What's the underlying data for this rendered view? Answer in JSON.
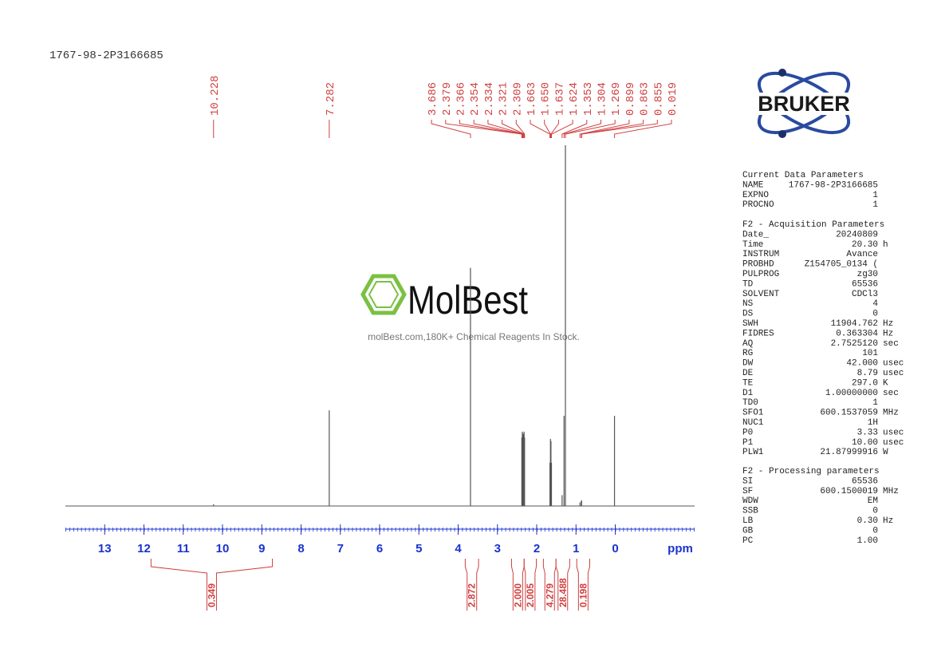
{
  "sample_id": "1767-98-2P3166685",
  "logo": {
    "text": "BRUKER"
  },
  "watermark": {
    "brand": "MolBest",
    "tagline": "molBest.com,180K+ Chemical Reagents In Stock."
  },
  "chart_data": {
    "type": "nmr",
    "x": [
      10.228,
      7.282,
      3.686,
      2.379,
      2.366,
      2.354,
      2.334,
      2.321,
      2.309,
      1.663,
      1.65,
      1.637,
      1.624,
      1.353,
      1.304,
      1.269,
      0.899,
      0.863,
      0.855,
      0.019
    ],
    "x_labels": [
      "10.228",
      "7.282",
      "3.686",
      "2.379",
      "2.366",
      "2.354",
      "2.334",
      "2.321",
      "2.309",
      "1.663",
      "1.650",
      "1.637",
      "1.624",
      "1.353",
      "1.304",
      "1.269",
      "0.899",
      "0.863",
      "0.855",
      "0.019"
    ],
    "values": [
      0.5,
      26.5,
      66,
      19,
      20.6,
      20,
      20,
      20.6,
      19,
      12,
      18.6,
      18,
      12,
      3,
      25,
      100,
      1,
      1.5,
      1.5,
      25
    ],
    "color": "#555555",
    "label_color": "#d04040",
    "axis_color": "#1a33cc",
    "xlim": [
      14,
      -2
    ],
    "xticks": [
      13,
      12,
      11,
      10,
      9,
      8,
      7,
      6,
      5,
      4,
      3,
      2,
      1,
      0
    ],
    "xlabel": "ppm",
    "ylim": [
      0,
      100
    ],
    "integrals": {
      "ranges": [
        [
          11.82,
          8.73
        ],
        [
          3.82,
          3.48
        ],
        [
          2.64,
          2.32
        ],
        [
          2.32,
          2.01
        ],
        [
          1.83,
          1.51
        ],
        [
          1.51,
          1.16
        ],
        [
          0.98,
          0.65
        ]
      ],
      "values": [
        0.349,
        2.872,
        2,
        2.005,
        4.279,
        28.488,
        0.198
      ],
      "value_labels": [
        "0.349",
        "2.872",
        "2.000",
        "2.005",
        "4.279",
        "28.488",
        "0.198"
      ]
    }
  },
  "parameters": {
    "sections": [
      {
        "title": "Current Data Parameters",
        "rows": [
          [
            "NAME",
            "1767-98-2P3166685"
          ],
          [
            "EXPNO",
            "1"
          ],
          [
            "PROCNO",
            "1"
          ]
        ]
      },
      {
        "title": "F2 - Acquisition Parameters",
        "rows": [
          [
            "Date_",
            "20240809"
          ],
          [
            "Time",
            "20.30",
            "h"
          ],
          [
            "INSTRUM",
            "Avance"
          ],
          [
            "PROBHD",
            "Z154705_0134 ("
          ],
          [
            "PULPROG",
            "zg30"
          ],
          [
            "TD",
            "65536"
          ],
          [
            "SOLVENT",
            "CDCl3"
          ],
          [
            "NS",
            "4"
          ],
          [
            "DS",
            "0"
          ],
          [
            "SWH",
            "11904.762",
            "Hz"
          ],
          [
            "FIDRES",
            "0.363304",
            "Hz"
          ],
          [
            "AQ",
            "2.7525120",
            "sec"
          ],
          [
            "RG",
            "101"
          ],
          [
            "DW",
            "42.000",
            "usec"
          ],
          [
            "DE",
            "8.79",
            "usec"
          ],
          [
            "TE",
            "297.0",
            "K"
          ],
          [
            "D1",
            "1.00000000",
            "sec"
          ],
          [
            "TD0",
            "1"
          ],
          [
            "SFO1",
            "600.1537059",
            "MHz"
          ],
          [
            "NUC1",
            "1H"
          ],
          [
            "P0",
            "3.33",
            "usec"
          ],
          [
            "P1",
            "10.00",
            "usec"
          ],
          [
            "PLW1",
            "21.87999916",
            "W"
          ]
        ]
      },
      {
        "title": "F2 - Processing parameters",
        "rows": [
          [
            "SI",
            "65536"
          ],
          [
            "SF",
            "600.1500019",
            "MHz"
          ],
          [
            "WDW",
            "EM"
          ],
          [
            "SSB",
            "0"
          ],
          [
            "LB",
            "0.30",
            "Hz"
          ],
          [
            "GB",
            "0"
          ],
          [
            "PC",
            "1.00"
          ]
        ]
      }
    ]
  }
}
